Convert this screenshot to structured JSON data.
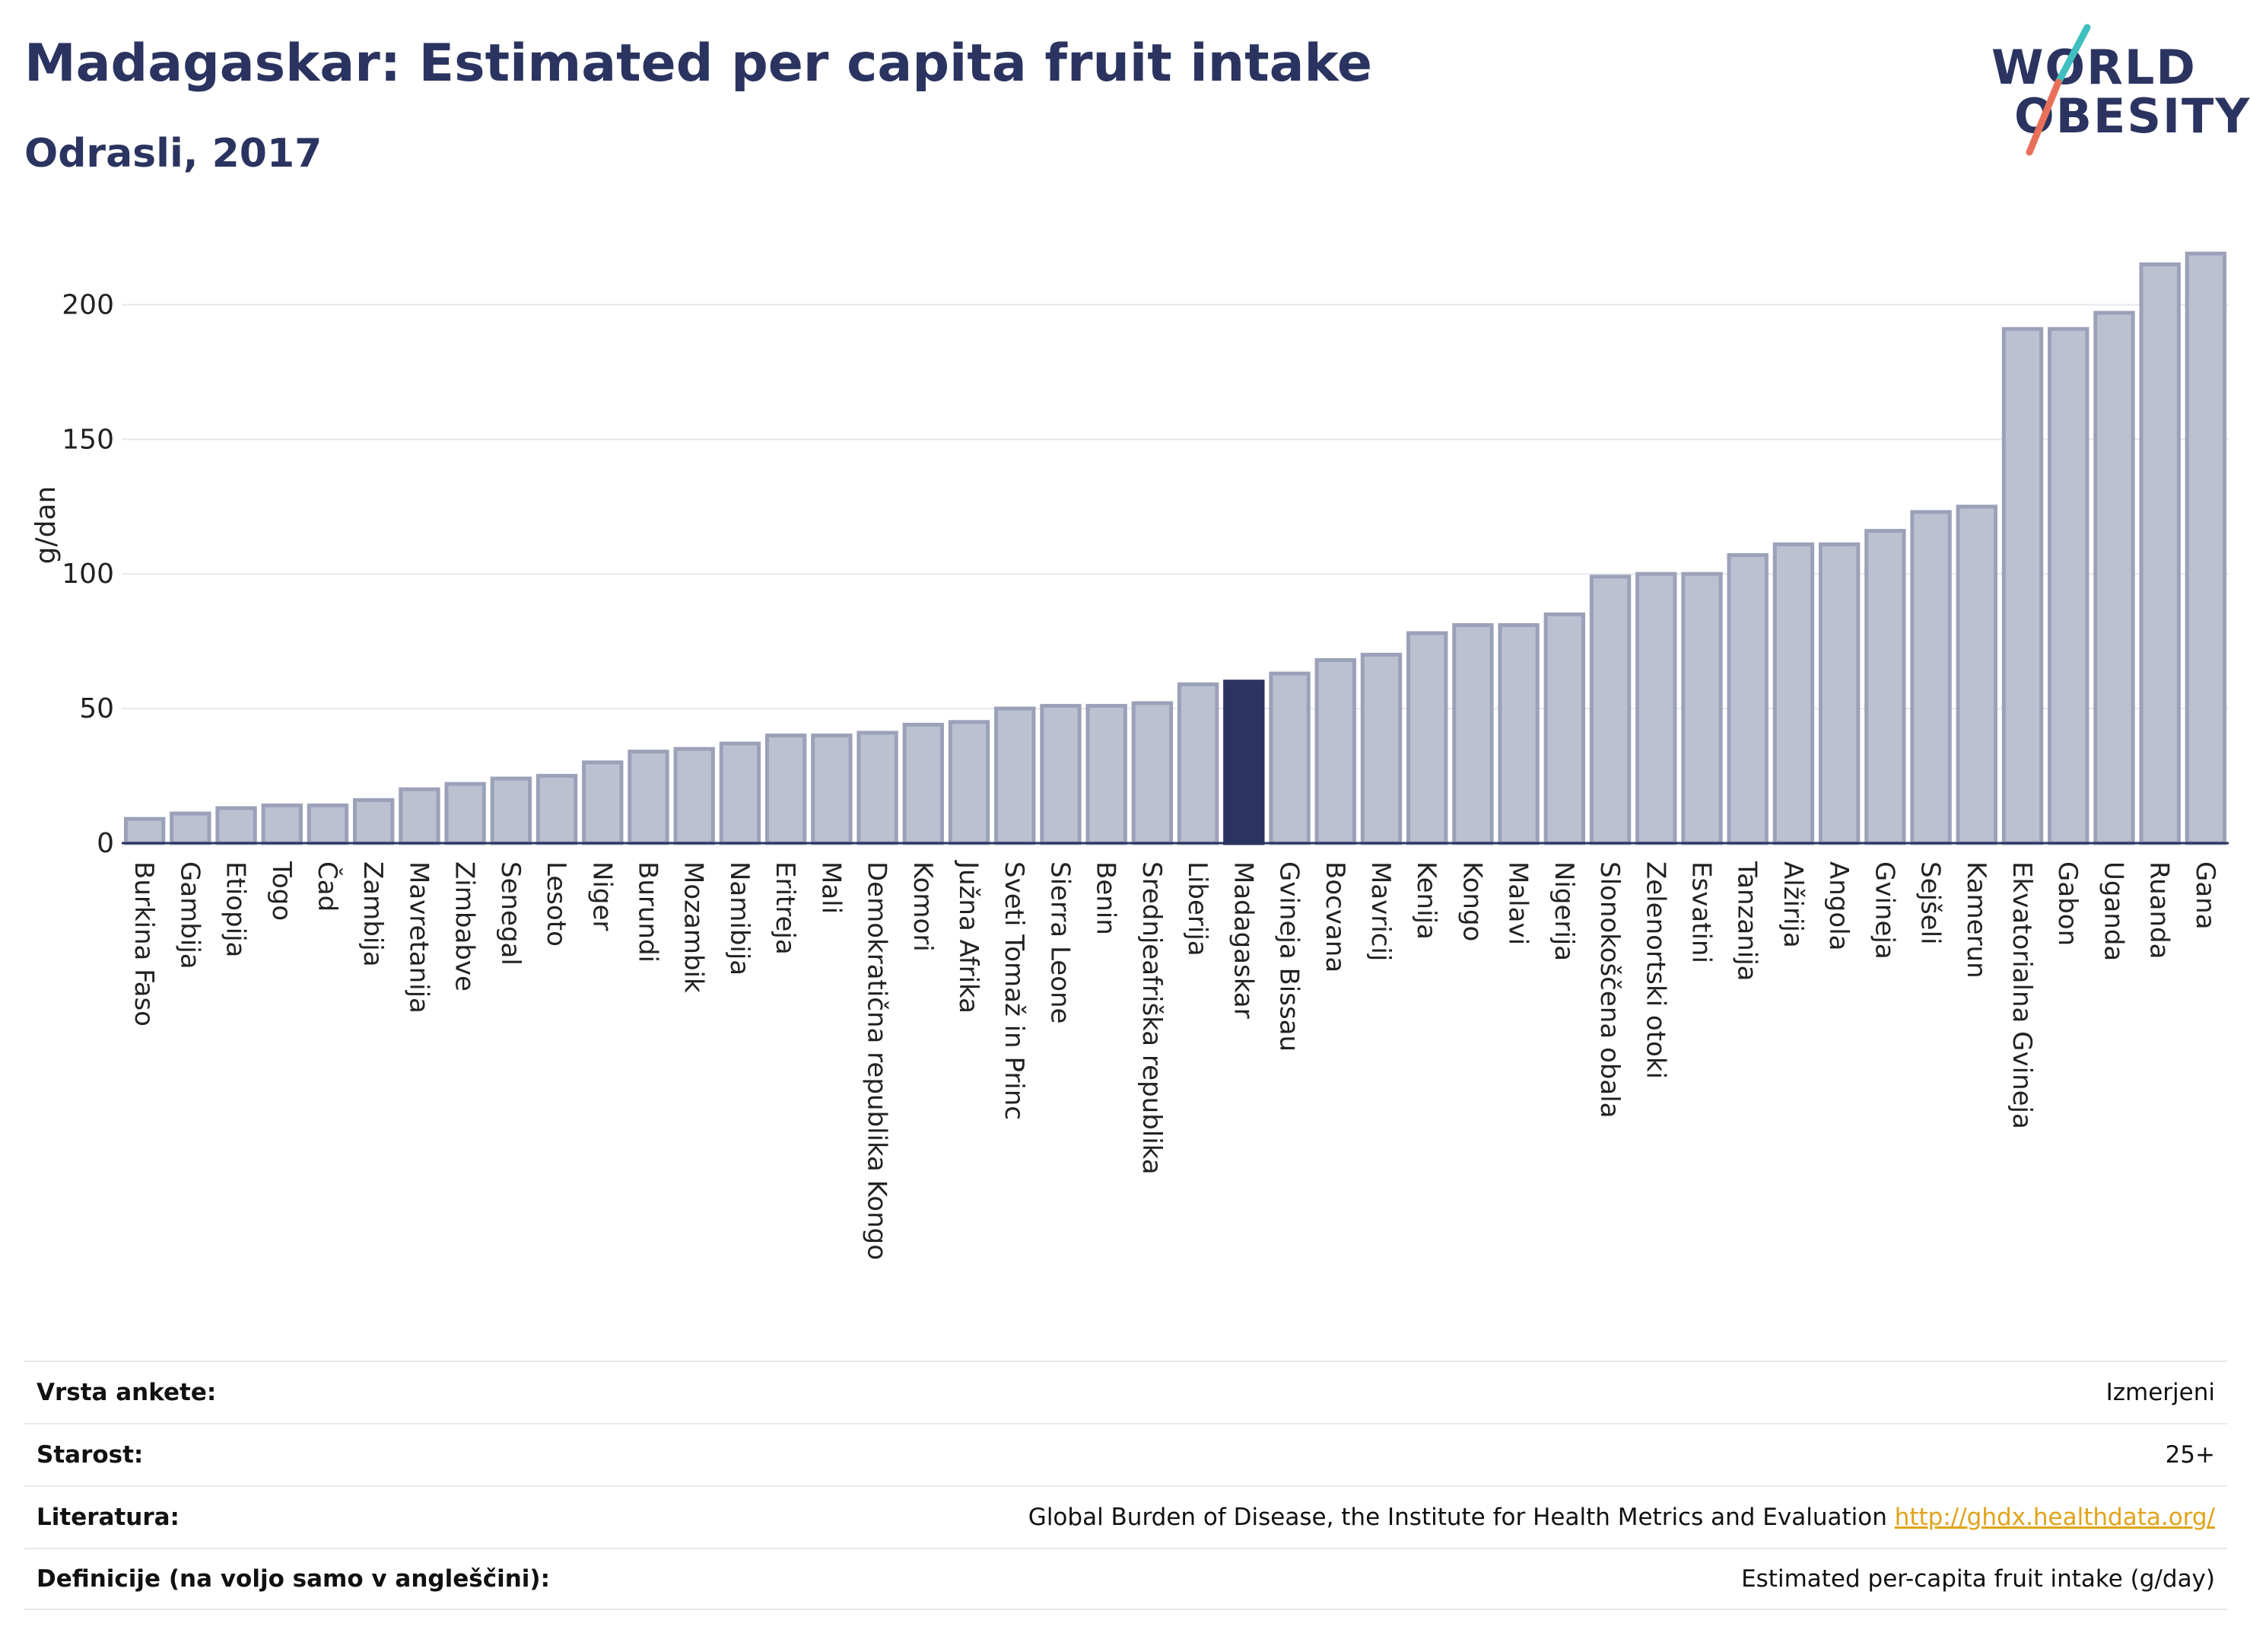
{
  "header": {
    "title": "Madagaskar: Estimated per capita fruit intake",
    "subtitle": "Odrasli, 2017"
  },
  "logo": {
    "line1": "WORLD",
    "line2": "OBESITY"
  },
  "colors": {
    "bar": "#bcc0d1",
    "bar_stroke": "#9ba1b8",
    "highlight": "#2b3460",
    "grid": "#e6e8ec",
    "axis": "#2b3460",
    "slash_teal": "#3fbfbf",
    "slash_coral": "#e8705a"
  },
  "chart_data": {
    "type": "bar",
    "ylabel": "g/dan",
    "ylim": [
      0,
      225
    ],
    "yticks": [
      0,
      50,
      100,
      150,
      200
    ],
    "grid": true,
    "highlight": "Madagaskar",
    "categories": [
      "Burkina Faso",
      "Gambija",
      "Etiopija",
      "Togo",
      "Čad",
      "Zambija",
      "Mavretanija",
      "Zimbabve",
      "Senegal",
      "Lesoto",
      "Niger",
      "Burundi",
      "Mozambik",
      "Namibija",
      "Eritreja",
      "Mali",
      "Demokratična republika Kongo",
      "Komori",
      "Južna Afrika",
      "Sveti Tomaž in Princ",
      "Sierra Leone",
      "Benin",
      "Srednjeafriška republika",
      "Liberija",
      "Madagaskar",
      "Gvineja Bissau",
      "Bocvana",
      "Mavricij",
      "Kenija",
      "Kongo",
      "Malavi",
      "Nigerija",
      "Slonokoščena obala",
      "Zelenortski otoki",
      "Esvatini",
      "Tanzanija",
      "Alžirija",
      "Angola",
      "Gvineja",
      "Sejšeli",
      "Kamerun",
      "Ekvatorialna Gvineja",
      "Gabon",
      "Uganda",
      "Ruanda",
      "Gana"
    ],
    "values": [
      9,
      11,
      13,
      14,
      14,
      16,
      20,
      22,
      24,
      25,
      30,
      34,
      35,
      37,
      40,
      40,
      41,
      44,
      45,
      50,
      51,
      51,
      52,
      59,
      60,
      63,
      68,
      70,
      78,
      81,
      81,
      85,
      99,
      100,
      100,
      107,
      111,
      111,
      116,
      123,
      125,
      191,
      191,
      197,
      215,
      219
    ]
  },
  "info_table": [
    {
      "key": "Vrsta ankete:",
      "value": "Izmerjeni",
      "link": ""
    },
    {
      "key": "Starost:",
      "value": "25+",
      "link": ""
    },
    {
      "key": "Literatura:",
      "value": "Global Burden of Disease, the Institute for Health Metrics and Evaluation",
      "link": "http://ghdx.healthdata.org/"
    },
    {
      "key": "Definicije (na voljo samo v angleščini):",
      "value": "Estimated per-capita fruit intake (g/day)",
      "link": ""
    }
  ]
}
